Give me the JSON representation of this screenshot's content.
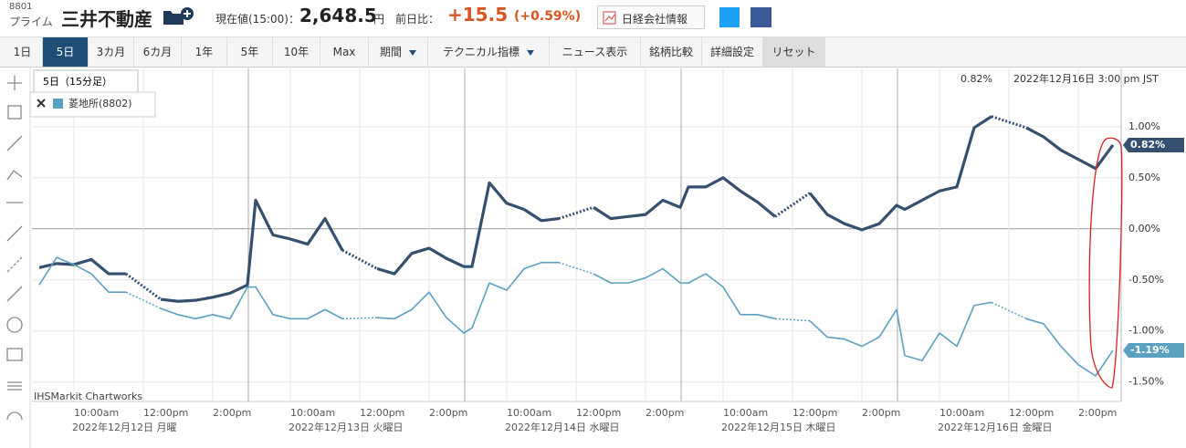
{
  "header": {
    "code": "8801",
    "market": "プライム",
    "name": "三井不動産",
    "price_label": "現在値(15:00)：",
    "price": "2,648.5",
    "price_unit": "円",
    "change_label": "前日比：",
    "change": "+15.5",
    "change_pct": "(+0.59%)",
    "company_info": "日経会社情報"
  },
  "toolbar": [
    "1日",
    "5日",
    "3カ月",
    "6カ月",
    "1年",
    "5年",
    "10年",
    "Max",
    "期間",
    "テクニカル指標",
    "ニュース表示",
    "銘柄比較",
    "詳細設定",
    "リセット"
  ],
  "tooltip": "5日（15分足）",
  "chart_data": {
    "type": "line",
    "current_value": "0.82%",
    "timestamp": "2022年12月16日 3:00 pm JST",
    "credit": "IHSMarkit Chartworks",
    "categories": [
      null,
      null,
      "10:00am",
      null,
      null,
      null,
      "12:00pm",
      null,
      null,
      null,
      "2:00pm",
      null,
      null,
      null,
      null,
      "10:00am",
      null,
      null,
      null,
      "12:00pm",
      null,
      null,
      null,
      "2:00pm",
      null,
      null,
      null,
      null,
      "10:00am",
      null,
      null,
      null,
      "12:00pm",
      null,
      null,
      null,
      "2:00pm",
      null,
      null,
      null,
      null,
      "10:00am",
      null,
      null,
      null,
      "12:00pm",
      null,
      null,
      null,
      "2:00pm",
      null,
      null,
      null,
      null,
      "10:00am",
      null,
      null,
      null,
      "12:00pm",
      null,
      null,
      null,
      "2:00pm",
      null,
      null
    ],
    "day_labels": [
      "2022年12月12日 月曜",
      "2022年12月13日 火曜日",
      "2022年12月14日 水曜日",
      "2022年12月15日 木曜日",
      "2022年12月16日 金曜日"
    ],
    "series": [
      {
        "color": "#34506e",
        "end_label": "0.82%",
        "values": [
          -0.38,
          -0.34,
          -0.35,
          -0.3,
          -0.44,
          -0.44,
          null,
          -0.69,
          -0.71,
          -0.7,
          -0.67,
          -0.63,
          -0.55,
          0.28,
          -0.06,
          -0.1,
          -0.15,
          0.1,
          -0.21,
          null,
          -0.39,
          -0.44,
          -0.24,
          -0.19,
          -0.29,
          -0.37,
          -0.37,
          0.45,
          0.25,
          0.19,
          0.08,
          0.1,
          null,
          0.21,
          0.1,
          0.12,
          0.14,
          0.28,
          0.21,
          0.41,
          0.41,
          0.5,
          0.37,
          0.26,
          0.12,
          null,
          0.35,
          0.14,
          0.05,
          -0.01,
          0.05,
          0.23,
          0.19,
          0.28,
          0.37,
          0.41,
          0.99,
          1.1,
          null,
          0.99,
          0.9,
          0.77,
          0.68,
          0.59,
          0.82
        ]
      },
      {
        "name": "菱地所(8802)",
        "color": "#5aa0c0",
        "end_label": "-1.19%",
        "values": [
          -0.55,
          -0.28,
          -0.35,
          -0.44,
          -0.62,
          -0.62,
          null,
          -0.78,
          -0.84,
          -0.88,
          -0.84,
          -0.88,
          -0.57,
          -0.57,
          -0.84,
          -0.88,
          -0.88,
          -0.79,
          -0.88,
          null,
          -0.87,
          -0.88,
          -0.79,
          -0.62,
          -0.87,
          -1.02,
          -0.97,
          -0.53,
          -0.6,
          -0.39,
          -0.33,
          -0.33,
          null,
          -0.44,
          -0.53,
          -0.53,
          -0.48,
          -0.39,
          -0.53,
          -0.53,
          -0.44,
          -0.57,
          -0.84,
          -0.84,
          -0.88,
          null,
          -0.9,
          -1.06,
          -1.08,
          -1.15,
          -1.06,
          -0.79,
          -1.24,
          -1.29,
          -1.02,
          -1.15,
          -0.75,
          -0.72,
          null,
          -0.88,
          -0.93,
          -1.15,
          -1.33,
          -1.44,
          -1.19
        ]
      }
    ],
    "ylim": [
      -1.69,
      1.57
    ],
    "yticks": [
      {
        "value": -1.5,
        "label": "-1.50%"
      },
      {
        "value": -1,
        "label": "-1.00%"
      },
      {
        "value": -0.5,
        "label": "-0.50%"
      },
      {
        "value": 0,
        "label": "0.00%"
      },
      {
        "value": 0.5,
        "label": "0.50%"
      },
      {
        "value": 1,
        "label": "1.00%"
      }
    ],
    "grid": true
  }
}
